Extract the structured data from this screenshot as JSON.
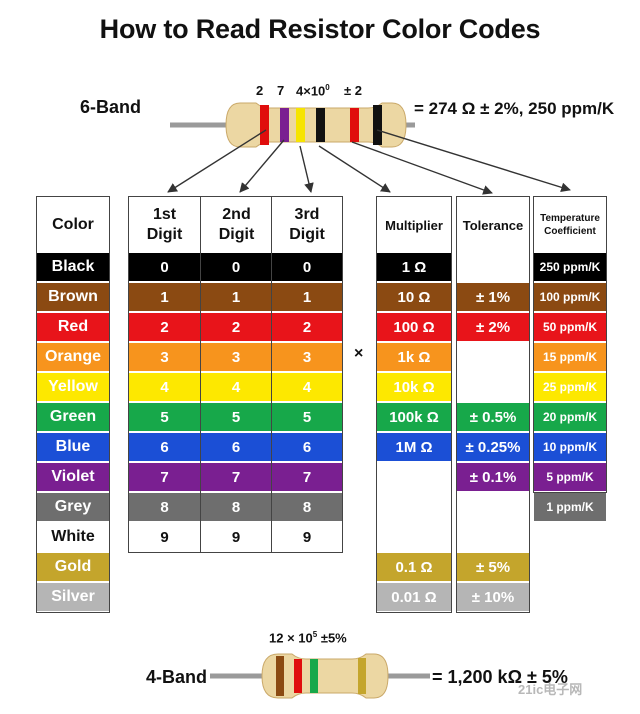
{
  "title": "How to Read Resistor Color Codes",
  "six_band": {
    "label": "6-Band",
    "annotations": [
      {
        "text": "2",
        "sup": ""
      },
      {
        "text": "7",
        "sup": ""
      },
      {
        "text": "4×10",
        "sup": "0"
      },
      {
        "text": "± 2",
        "sup": ""
      }
    ],
    "equation": "= 274 Ω ± 2%, 250 ppm/K",
    "band_colors": [
      "#e00d0d",
      "#7a1f91",
      "#f6e400",
      "#111111",
      "#e00d0d",
      "#111111"
    ]
  },
  "four_band": {
    "label": "4-Band",
    "annotation": "12 × 10",
    "annotation_sup": "5",
    "annotation_suffix": " ±5%",
    "equation": "= 1,200 kΩ ± 5%",
    "band_colors": [
      "#8b4a12",
      "#e00d0d",
      "#17a84a",
      "#c4a52c"
    ]
  },
  "multiply_sign": "×",
  "watermark": "21ic电子网",
  "headers": {
    "color": "Color",
    "digit1": [
      "1st",
      "Digit"
    ],
    "digit2": [
      "2nd",
      "Digit"
    ],
    "digit3": [
      "3rd",
      "Digit"
    ],
    "multiplier": "Multiplier",
    "tolerance": "Tolerance",
    "tempco": [
      "Temperature",
      "Coefficient"
    ]
  },
  "rows": [
    {
      "name": "Black",
      "hex": "#000000",
      "d1": "0",
      "d2": "0",
      "d3": "0",
      "mult": "1 Ω",
      "tol": "",
      "tc": "250 ppm/K"
    },
    {
      "name": "Brown",
      "hex": "#8b4a12",
      "d1": "1",
      "d2": "1",
      "d3": "1",
      "mult": "10 Ω",
      "tol": "± 1%",
      "tc": "100 ppm/K"
    },
    {
      "name": "Red",
      "hex": "#e8141a",
      "d1": "2",
      "d2": "2",
      "d3": "2",
      "mult": "100 Ω",
      "tol": "± 2%",
      "tc": "50 ppm/K"
    },
    {
      "name": "Orange",
      "hex": "#f7941d",
      "d1": "3",
      "d2": "3",
      "d3": "3",
      "mult": "1k Ω",
      "tol": "",
      "tc": "15 ppm/K"
    },
    {
      "name": "Yellow",
      "hex": "#fde800",
      "d1": "4",
      "d2": "4",
      "d3": "4",
      "mult": "10k Ω",
      "tol": "",
      "tc": "25 ppm/K"
    },
    {
      "name": "Green",
      "hex": "#17a84a",
      "d1": "5",
      "d2": "5",
      "d3": "5",
      "mult": "100k Ω",
      "tol": "± 0.5%",
      "tc": "20 ppm/K"
    },
    {
      "name": "Blue",
      "hex": "#1b4fd6",
      "d1": "6",
      "d2": "6",
      "d3": "6",
      "mult": "1M Ω",
      "tol": "± 0.25%",
      "tc": "10 ppm/K"
    },
    {
      "name": "Violet",
      "hex": "#7a1f91",
      "d1": "7",
      "d2": "7",
      "d3": "7",
      "mult": "",
      "tol": "± 0.1%",
      "tc": "5 ppm/K"
    },
    {
      "name": "Grey",
      "hex": "#6e6e6e",
      "d1": "8",
      "d2": "8",
      "d3": "8",
      "mult": "",
      "tol": "",
      "tc": "1 ppm/K"
    },
    {
      "name": "White",
      "hex": "#ffffff",
      "d1": "9",
      "d2": "9",
      "d3": "9",
      "mult": "",
      "tol": "",
      "tc": ""
    },
    {
      "name": "Gold",
      "hex": "#c4a52c",
      "d1": "",
      "d2": "",
      "d3": "",
      "mult": "0.1 Ω",
      "tol": "± 5%",
      "tc": ""
    },
    {
      "name": "Silver",
      "hex": "#b5b5b5",
      "d1": "",
      "d2": "",
      "d3": "",
      "mult": "0.01 Ω",
      "tol": "± 10%",
      "tc": ""
    }
  ]
}
